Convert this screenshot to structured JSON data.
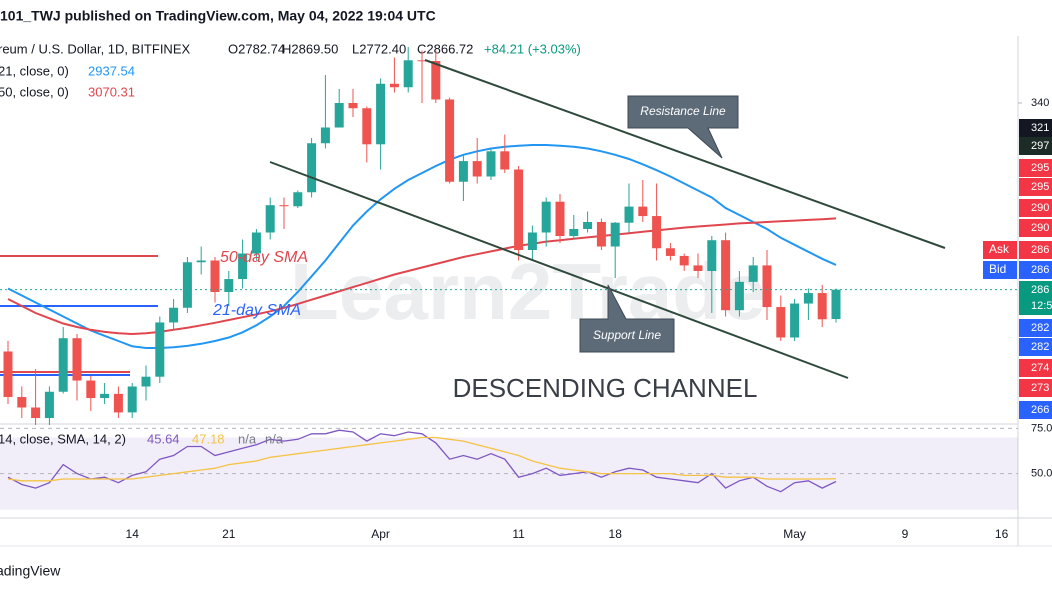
{
  "header": "101_TWJ published on TradingView.com, May 04, 2022 19:04 UTC",
  "footer": "adingView",
  "chart_data": {
    "type": "candlestick",
    "title": "reum / U.S. Dollar, 1D, BITFINEX",
    "ohlc_legend": [
      "O2782.74",
      "H2869.50",
      "L2772.40",
      "C2866.72"
    ],
    "change": "+84.21 (+3.03%)",
    "categories": [
      null,
      null,
      null,
      null,
      null,
      null,
      null,
      null,
      null,
      "14",
      null,
      null,
      null,
      null,
      null,
      null,
      "21",
      null,
      null,
      null,
      null,
      null,
      null,
      null,
      null,
      null,
      null,
      "Apr",
      null,
      null,
      null,
      null,
      null,
      null,
      null,
      null,
      null,
      "11",
      null,
      null,
      null,
      null,
      null,
      null,
      "18",
      null,
      null,
      null,
      null,
      null,
      null,
      null,
      null,
      null,
      null,
      null,
      null,
      "May",
      null,
      null,
      null,
      null,
      null,
      null,
      null,
      "9",
      null,
      null,
      null,
      null,
      null,
      null,
      "16"
    ],
    "open": [
      2690,
      2560,
      2530,
      2500,
      2575,
      2728,
      2607,
      2557,
      2569,
      2516,
      2590,
      2618,
      2773,
      2815,
      2945,
      2950,
      2860,
      2897,
      2970,
      3030,
      3108,
      3105,
      3145,
      3285,
      3330,
      3400,
      3385,
      3282,
      3455,
      3445,
      3522,
      3520,
      3410,
      3175,
      3234,
      3190,
      3262,
      3210,
      2980,
      3030,
      3118,
      3020,
      3040,
      3060,
      2990,
      3058,
      3104,
      3077,
      2985,
      2963,
      2936,
      2920,
      3008,
      2808,
      2889,
      2936,
      2817,
      2730,
      2827,
      2857,
      2782.74,
      null,
      null,
      null,
      null,
      null,
      null,
      null,
      null,
      null,
      null,
      null,
      null
    ],
    "high": [
      2720,
      2590,
      2640,
      2590,
      2760,
      2740,
      2620,
      2600,
      2590,
      2600,
      2650,
      2790,
      2840,
      2960,
      2990,
      2960,
      2920,
      3010,
      3040,
      3130,
      3130,
      3150,
      3300,
      3480,
      3440,
      3440,
      3390,
      3470,
      3530,
      3560,
      3550,
      3550,
      3415,
      3250,
      3300,
      3270,
      3310,
      3220,
      3050,
      3130,
      3140,
      3080,
      3090,
      3070,
      3060,
      3170,
      3180,
      3170,
      3000,
      2970,
      2970,
      3020,
      3030,
      2920,
      2960,
      2980,
      2850,
      2840,
      2870,
      2880,
      2869.5,
      null,
      null,
      null,
      null,
      null,
      null,
      null,
      null,
      null,
      null,
      null,
      null
    ],
    "low": [
      2540,
      2500,
      2480,
      2480,
      2570,
      2550,
      2520,
      2540,
      2500,
      2500,
      2550,
      2600,
      2750,
      2800,
      2910,
      2830,
      2820,
      2870,
      2950,
      3010,
      3040,
      3100,
      3130,
      3270,
      3330,
      3360,
      3230,
      3210,
      3430,
      3430,
      3400,
      3400,
      3170,
      3120,
      3170,
      3180,
      3200,
      2950,
      2950,
      2990,
      3000,
      3010,
      3030,
      2980,
      2900,
      3030,
      3060,
      2950,
      2950,
      2920,
      2900,
      2800,
      2790,
      2790,
      2860,
      2780,
      2720,
      2720,
      2780,
      2760,
      2772.4,
      null,
      null,
      null,
      null,
      null,
      null,
      null,
      null,
      null,
      null,
      null,
      null
    ],
    "close": [
      2560,
      2530,
      2500,
      2575,
      2728,
      2607,
      2557,
      2569,
      2516,
      2590,
      2618,
      2773,
      2815,
      2945,
      2950,
      2860,
      2897,
      2970,
      3030,
      3108,
      3105,
      3145,
      3285,
      3330,
      3400,
      3385,
      3282,
      3455,
      3445,
      3522,
      3520,
      3410,
      3175,
      3234,
      3190,
      3262,
      3210,
      2980,
      3030,
      3118,
      3020,
      3040,
      3060,
      2990,
      3058,
      3104,
      3077,
      2985,
      2963,
      2936,
      2920,
      3008,
      2808,
      2889,
      2936,
      2817,
      2730,
      2827,
      2857,
      2782,
      2866.72,
      null,
      null,
      null,
      null,
      null,
      null,
      null,
      null,
      null,
      null,
      null,
      null
    ],
    "up_color": "#26a69a",
    "down_color": "#ef5350",
    "ylim": [
      2480,
      3580
    ],
    "yticks": [
      {
        "value": 3400,
        "label": "340"
      }
    ],
    "overlays": [
      {
        "name": "21, close, 0)",
        "color": "#2196f3",
        "values": [
          2870,
          2850,
          2830,
          2810,
          2790,
          2770,
          2750,
          2735,
          2720,
          2705,
          2700,
          2700,
          2702,
          2706,
          2712,
          2720,
          2730,
          2745,
          2765,
          2790,
          2820,
          2860,
          2905,
          2950,
          3000,
          3050,
          3090,
          3125,
          3155,
          3180,
          3200,
          3220,
          3238,
          3252,
          3262,
          3270,
          3275,
          3278,
          3280,
          3280,
          3278,
          3275,
          3270,
          3262,
          3252,
          3240,
          3225,
          3208,
          3190,
          3170,
          3150,
          3130,
          3100,
          3080,
          3060,
          3040,
          3015,
          2995,
          2975,
          2955,
          2937.54,
          null,
          null,
          null,
          null,
          null,
          null,
          null,
          null,
          null,
          null,
          null,
          null
        ]
      },
      {
        "name": "50, close, 0)",
        "color": "#e0464e",
        "values": [
          2840,
          2820,
          2800,
          2785,
          2770,
          2760,
          2752,
          2746,
          2742,
          2740,
          2742,
          2746,
          2752,
          2758,
          2765,
          2772,
          2780,
          2788,
          2796,
          2805,
          2815,
          2826,
          2838,
          2850,
          2862,
          2874,
          2886,
          2898,
          2910,
          2920,
          2930,
          2940,
          2950,
          2960,
          2968,
          2976,
          2984,
          2992,
          2998,
          3004,
          3008,
          3012,
          3016,
          3020,
          3024,
          3028,
          3032,
          3036,
          3040,
          3044,
          3047,
          3050,
          3053,
          3056,
          3058,
          3060,
          3062,
          3064,
          3066,
          3068,
          3070.31,
          null,
          null,
          null,
          null,
          null,
          null,
          null,
          null,
          null,
          null,
          null,
          null
        ]
      }
    ],
    "price_tags": [
      {
        "label": "321",
        "color": "#131722"
      },
      {
        "label": "297",
        "color": "#1c2b26"
      },
      {
        "label": "295",
        "color": "#f23645"
      },
      {
        "label": "295",
        "color": "#f23645"
      },
      {
        "label": "290",
        "color": "#f23645"
      },
      {
        "label": "290",
        "color": "#f23645"
      },
      {
        "name": "Ask",
        "label": "286",
        "color": "#f23645"
      },
      {
        "name": "Bid",
        "label": "286",
        "color": "#2962ff"
      },
      {
        "label": "286",
        "sub": "12:5",
        "color": "#089981"
      },
      {
        "label": "282",
        "color": "#2962ff"
      },
      {
        "label": "282",
        "color": "#2962ff"
      },
      {
        "label": "274",
        "color": "#f23645"
      },
      {
        "label": "273",
        "color": "#f23645"
      },
      {
        "label": "266",
        "color": "#2962ff"
      }
    ],
    "annotations": {
      "sma50": "50-day SMA",
      "sma21": "21-day SMA",
      "channel": "DESCENDING CHANNEL",
      "resistance": "Resistance Line",
      "support": "Support Line",
      "watermark": "Learn2Trade"
    },
    "rsi": {
      "type": "line",
      "title": "14, close, SMA, 14, 2)",
      "na": [
        "n/a",
        "n/a"
      ],
      "series": [
        {
          "color": "#7e57c2",
          "values": [
            48,
            44,
            42,
            45,
            55,
            50,
            47,
            48,
            45,
            49,
            51,
            58,
            60,
            65,
            65,
            60,
            62,
            64,
            66,
            69,
            68,
            69,
            72,
            72,
            74,
            73,
            68,
            72,
            71,
            73,
            72,
            67,
            58,
            60,
            58,
            61,
            58,
            48,
            50,
            53,
            49,
            50,
            51,
            48,
            51,
            53,
            52,
            48,
            47,
            46,
            45,
            50,
            42,
            46,
            48,
            43,
            40,
            45,
            46,
            42,
            45.64,
            null,
            null,
            null,
            null,
            null,
            null,
            null,
            null,
            null,
            null,
            null,
            null
          ]
        },
        {
          "color": "#f5c343",
          "values": [
            47,
            46,
            46,
            46,
            47,
            47,
            47,
            47,
            47,
            47,
            48,
            49,
            50,
            51,
            52,
            53,
            55,
            56,
            57,
            59,
            60,
            61,
            62,
            63,
            64,
            65,
            66,
            67,
            68,
            69,
            70,
            70,
            69,
            68,
            66,
            64,
            62,
            60,
            57,
            55,
            53,
            52,
            51,
            50,
            50,
            50,
            50,
            50,
            50,
            49,
            49,
            49,
            48,
            48,
            48,
            47,
            47,
            47,
            47,
            47,
            47.18,
            null,
            null,
            null,
            null,
            null,
            null,
            null,
            null,
            null,
            null,
            null,
            null
          ]
        }
      ],
      "band": [
        30,
        70
      ],
      "ylim": [
        26,
        78
      ],
      "yticks": [
        {
          "value": 75,
          "label": "75.0"
        },
        {
          "value": 50,
          "label": "50.0"
        }
      ]
    }
  }
}
